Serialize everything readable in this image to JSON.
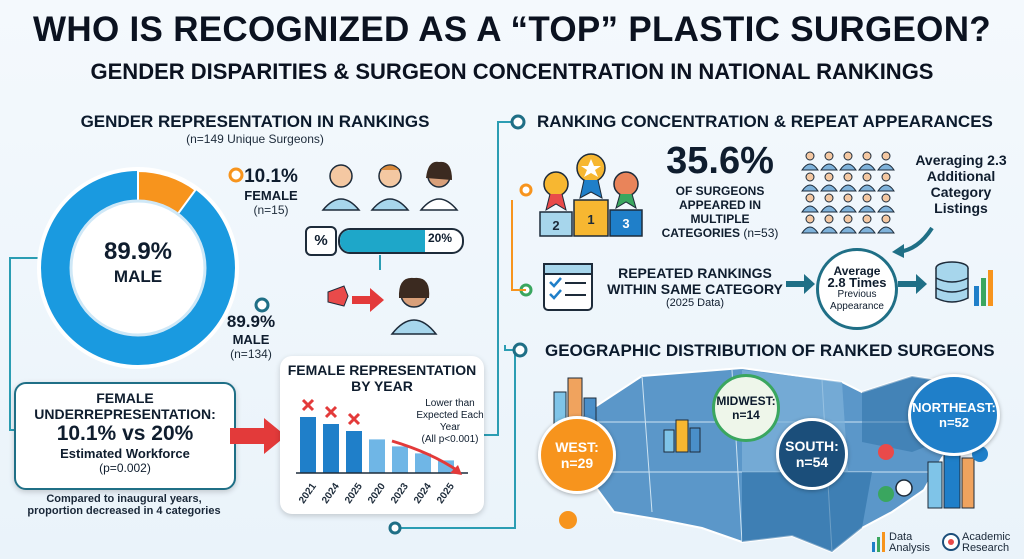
{
  "title": "WHO IS RECOGNIZED AS A “TOP” PLASTIC SURGEON?",
  "subtitle": "GENDER DISPARITIES & SURGEON CONCENTRATION IN NATIONAL RANKINGS",
  "gender": {
    "heading": "GENDER REPRESENTATION IN RANKINGS",
    "sample": "(n=149 Unique Surgeons)",
    "donut_center_pct": "89.9%",
    "donut_center_label": "MALE",
    "female_pct": "10.1%",
    "female_label": "FEMALE",
    "female_n": "(n=15)",
    "male_pct": "89.9%",
    "male_label": "MALE",
    "male_n": "(n=134)",
    "bar_label": "20%",
    "female_share": 0.101,
    "colors": {
      "male": "#1a9ae0",
      "female": "#f7941d",
      "ring_bg": "#cfe8f7"
    }
  },
  "underrep": {
    "line1": "FEMALE",
    "line2": "UNDERREPRESENTATION:",
    "line3": "10.1% vs 20%",
    "line4": "Estimated Workforce",
    "line5": "(p=0.002)",
    "footnote1": "Compared to inaugural years,",
    "footnote2": "proportion decreased in 4 categories"
  },
  "by_year": {
    "title1": "FEMALE REPRESENTATION",
    "title2": "BY YEAR",
    "note1": "Lower than",
    "note2": "Expected Each Year",
    "note3": "(All p<0.001)",
    "years": [
      "2021",
      "2024",
      "2025",
      "2020",
      "2023",
      "2024",
      "2025"
    ],
    "values": [
      0.8,
      0.7,
      0.6,
      0.48,
      0.38,
      0.28,
      0.18
    ]
  },
  "concentration": {
    "heading": "RANKING CONCENTRATION & REPEAT APPEARANCES",
    "pct": "35.6%",
    "desc1": "OF SURGEONS",
    "desc2": "APPEARED IN",
    "desc3": "MULTIPLE",
    "desc4": "CATEGORIES",
    "desc_n": "(n=53)",
    "avg1": "Averaging 2.3",
    "avg2": "Additional",
    "avg3": "Category",
    "avg4": "Listings",
    "podium": [
      "2",
      "1",
      "3"
    ],
    "repeat1": "REPEATED RANKINGS",
    "repeat2": "WITHIN SAME CATEGORY",
    "repeat3": "(2025 Data)",
    "times1": "Average",
    "times2": "2.8 Times",
    "times3": "Previous",
    "times4": "Appearance"
  },
  "geo": {
    "heading": "GEOGRAPHIC DISTRIBUTION OF RANKED SURGEONS",
    "west_name": "WEST:",
    "west_n": "n=29",
    "midwest_name": "MIDWEST:",
    "midwest_n": "n=14",
    "south_name": "SOUTH:",
    "south_n": "n=54",
    "northeast_name": "NORTHEAST:",
    "northeast_n": "n=52"
  },
  "footer": {
    "logo1a": "Data",
    "logo1b": "Analysis",
    "logo2a": "Academic",
    "logo2b": "Research"
  }
}
